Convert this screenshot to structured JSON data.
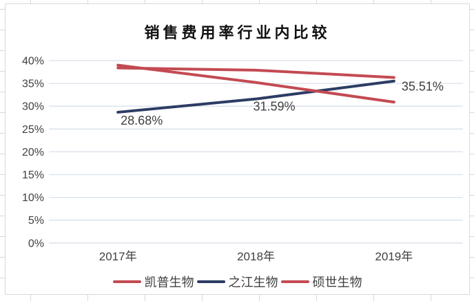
{
  "chart_data": {
    "type": "line",
    "title": "销售费用率行业内比较",
    "categories": [
      "2017年",
      "2018年",
      "2019年"
    ],
    "series": [
      {
        "name": "凯普生物",
        "color": "#C34A52",
        "values": [
          38.4,
          37.9,
          36.3
        ]
      },
      {
        "name": "之江生物",
        "color": "#2C3C64",
        "values": [
          28.68,
          31.59,
          35.51
        ],
        "labels": [
          "28.68%",
          "31.59%",
          "35.51%"
        ]
      },
      {
        "name": "硕世生物",
        "color": "#C34A52",
        "values": [
          39.0,
          35.2,
          30.9
        ]
      }
    ],
    "ylim": [
      0,
      40
    ],
    "ytick_step": 5,
    "ytick_labels": [
      "40%",
      "35%",
      "30%",
      "25%",
      "20%",
      "15%",
      "10%",
      "5%",
      "0%"
    ],
    "xlabel": "",
    "ylabel": "",
    "grid": true,
    "legend_position": "bottom",
    "gridline_color": "#D8E0EA",
    "axis_text_color": "#3F3F3F",
    "data_label_color": "#404040"
  }
}
